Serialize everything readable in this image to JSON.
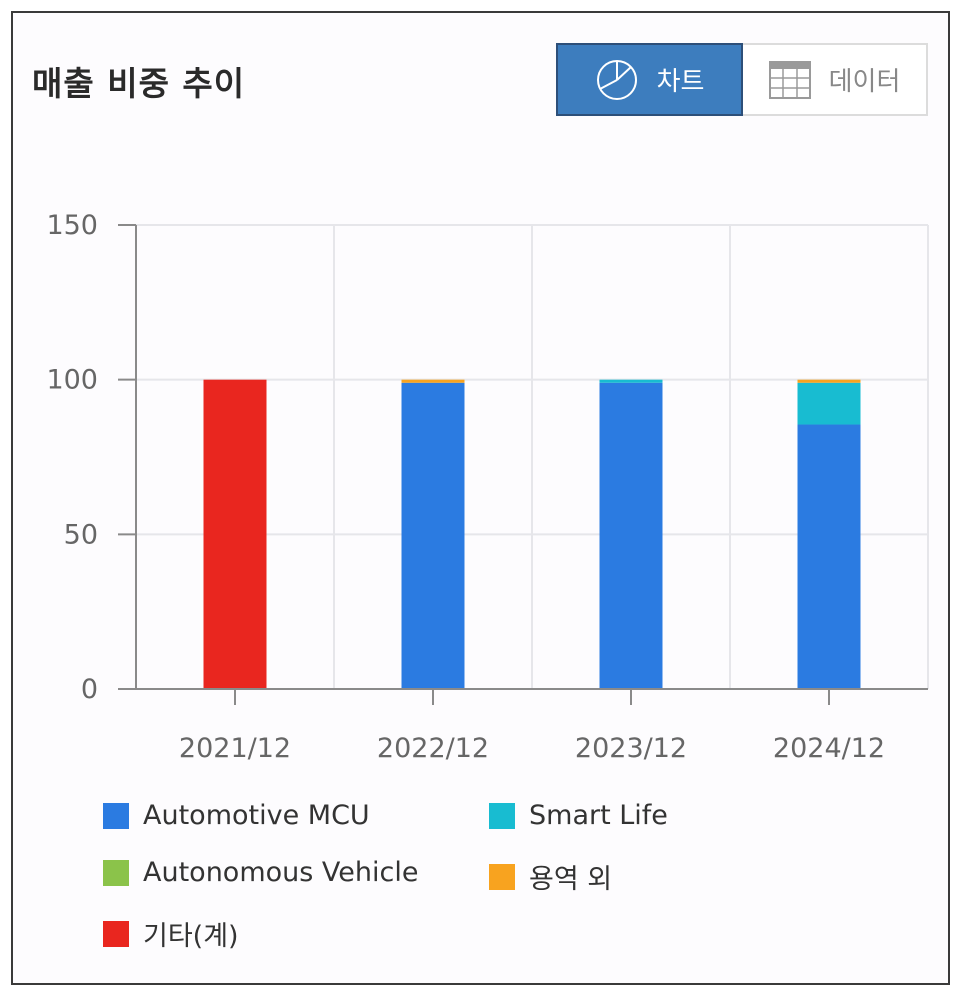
{
  "header": {
    "title": "매출 비중 추이"
  },
  "toggle": {
    "chart_label": "차트",
    "data_label": "데이터",
    "selected": "chart"
  },
  "chart_data": {
    "type": "bar",
    "stacked": true,
    "categories": [
      "2021/12",
      "2022/12",
      "2023/12",
      "2024/12"
    ],
    "series": [
      {
        "name": "Automotive MCU",
        "color": "#2b7be1",
        "values": [
          0,
          99,
          99,
          85.5
        ]
      },
      {
        "name": "Smart Life",
        "color": "#18bcd1",
        "values": [
          0,
          0,
          1,
          13.5
        ]
      },
      {
        "name": "Autonomous Vehicle",
        "color": "#8bc34a",
        "values": [
          0,
          0,
          0,
          0
        ]
      },
      {
        "name": "용역 외",
        "color": "#f8a31f",
        "values": [
          0,
          1,
          0,
          1
        ]
      },
      {
        "name": "기타(계)",
        "color": "#e9261f",
        "values": [
          100,
          0,
          0,
          0
        ]
      }
    ],
    "ylim": [
      0,
      150
    ],
    "yticks": [
      0,
      50,
      100,
      150
    ],
    "grid": true,
    "legend_position": "bottom",
    "xlabel": "",
    "ylabel": ""
  }
}
